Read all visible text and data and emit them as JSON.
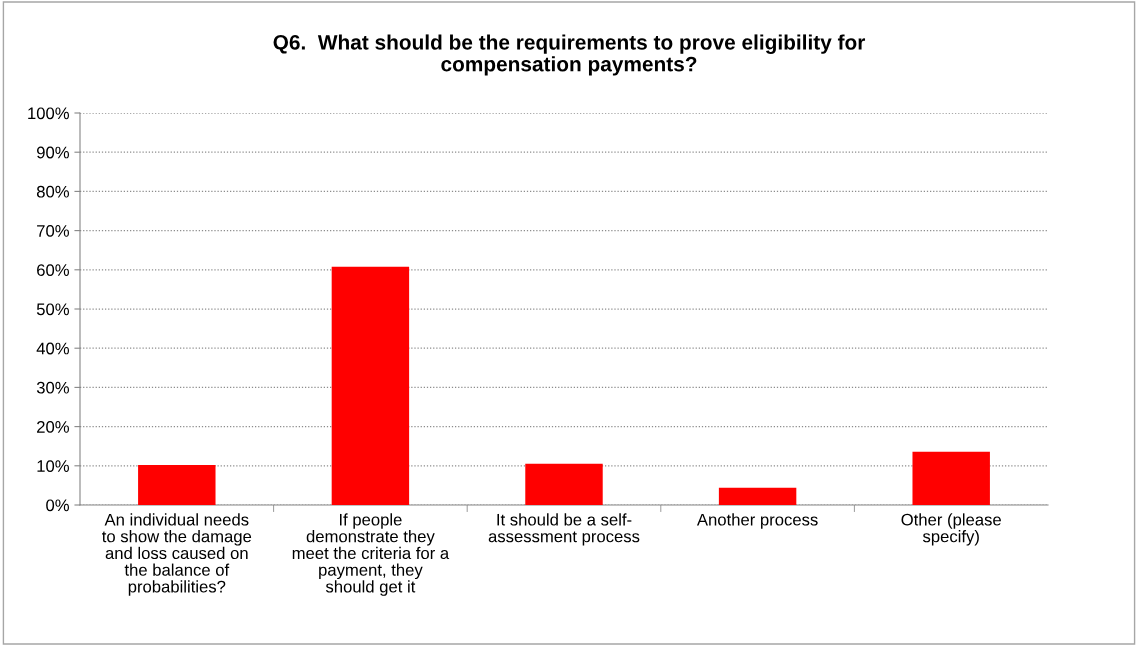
{
  "chart_data": {
    "type": "bar",
    "title": "Q6.  What should be the requirements to prove eligibility for\ncompensation payments?",
    "categories": [
      "An individual needs\nto show the damage\nand loss caused on\nthe balance of\nprobabilities?",
      "If people\ndemonstrate they\nmeet the criteria for a\npayment, they\nshould get it",
      "It should be a self-\nassessment process",
      "Another process",
      "Other (please\nspecify)"
    ],
    "values": [
      10.2,
      60.8,
      10.5,
      4.4,
      13.6
    ],
    "color": "#ff0000",
    "ylim": [
      0,
      100
    ],
    "yticks": [
      {
        "value": 0,
        "label": "0%"
      },
      {
        "value": 10,
        "label": "10%"
      },
      {
        "value": 20,
        "label": "20%"
      },
      {
        "value": 30,
        "label": "30%"
      },
      {
        "value": 40,
        "label": "40%"
      },
      {
        "value": 50,
        "label": "50%"
      },
      {
        "value": 60,
        "label": "60%"
      },
      {
        "value": 70,
        "label": "70%"
      },
      {
        "value": 80,
        "label": "80%"
      },
      {
        "value": 90,
        "label": "90%"
      },
      {
        "value": 100,
        "label": "100%"
      }
    ],
    "grid": "y"
  }
}
